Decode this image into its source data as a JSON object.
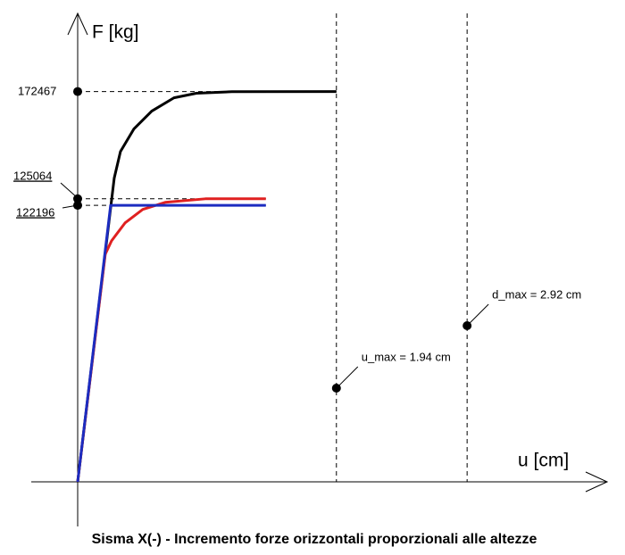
{
  "chart_data": {
    "type": "line",
    "title": "Sisma X(-) - Incremento forze orizzontali proporzionali alle altezze",
    "x_label": "u [cm]",
    "y_label": "F [kg]",
    "xlim": [
      0,
      3.97
    ],
    "ylim": [
      0,
      207000
    ],
    "series": [
      {
        "color": "#000000",
        "x": [
          0,
          0.274,
          0.321,
          0.421,
          0.555,
          0.722,
          0.89,
          1.157,
          1.94
        ],
        "values": [
          0,
          134200,
          146000,
          155900,
          163800,
          169700,
          171700,
          172400,
          172467
        ]
      },
      {
        "color": "#e02020",
        "x": [
          0,
          0.207,
          0.254,
          0.355,
          0.488,
          0.656,
          0.957,
          1.411
        ],
        "values": [
          0,
          100600,
          106500,
          114400,
          120400,
          123500,
          125064,
          125064
        ]
      },
      {
        "color": "#1c2cc0",
        "x": [
          0,
          0.247,
          1.411
        ],
        "values": [
          0,
          122196,
          122196
        ]
      }
    ],
    "y_markers": [
      172467,
      125064,
      122196
    ],
    "annotations": [
      {
        "label": "u_max = 1.94 cm",
        "x": 1.94,
        "y": 41400
      },
      {
        "label": "d_max = 2.92 cm",
        "x": 2.92,
        "y": 69000
      }
    ]
  }
}
